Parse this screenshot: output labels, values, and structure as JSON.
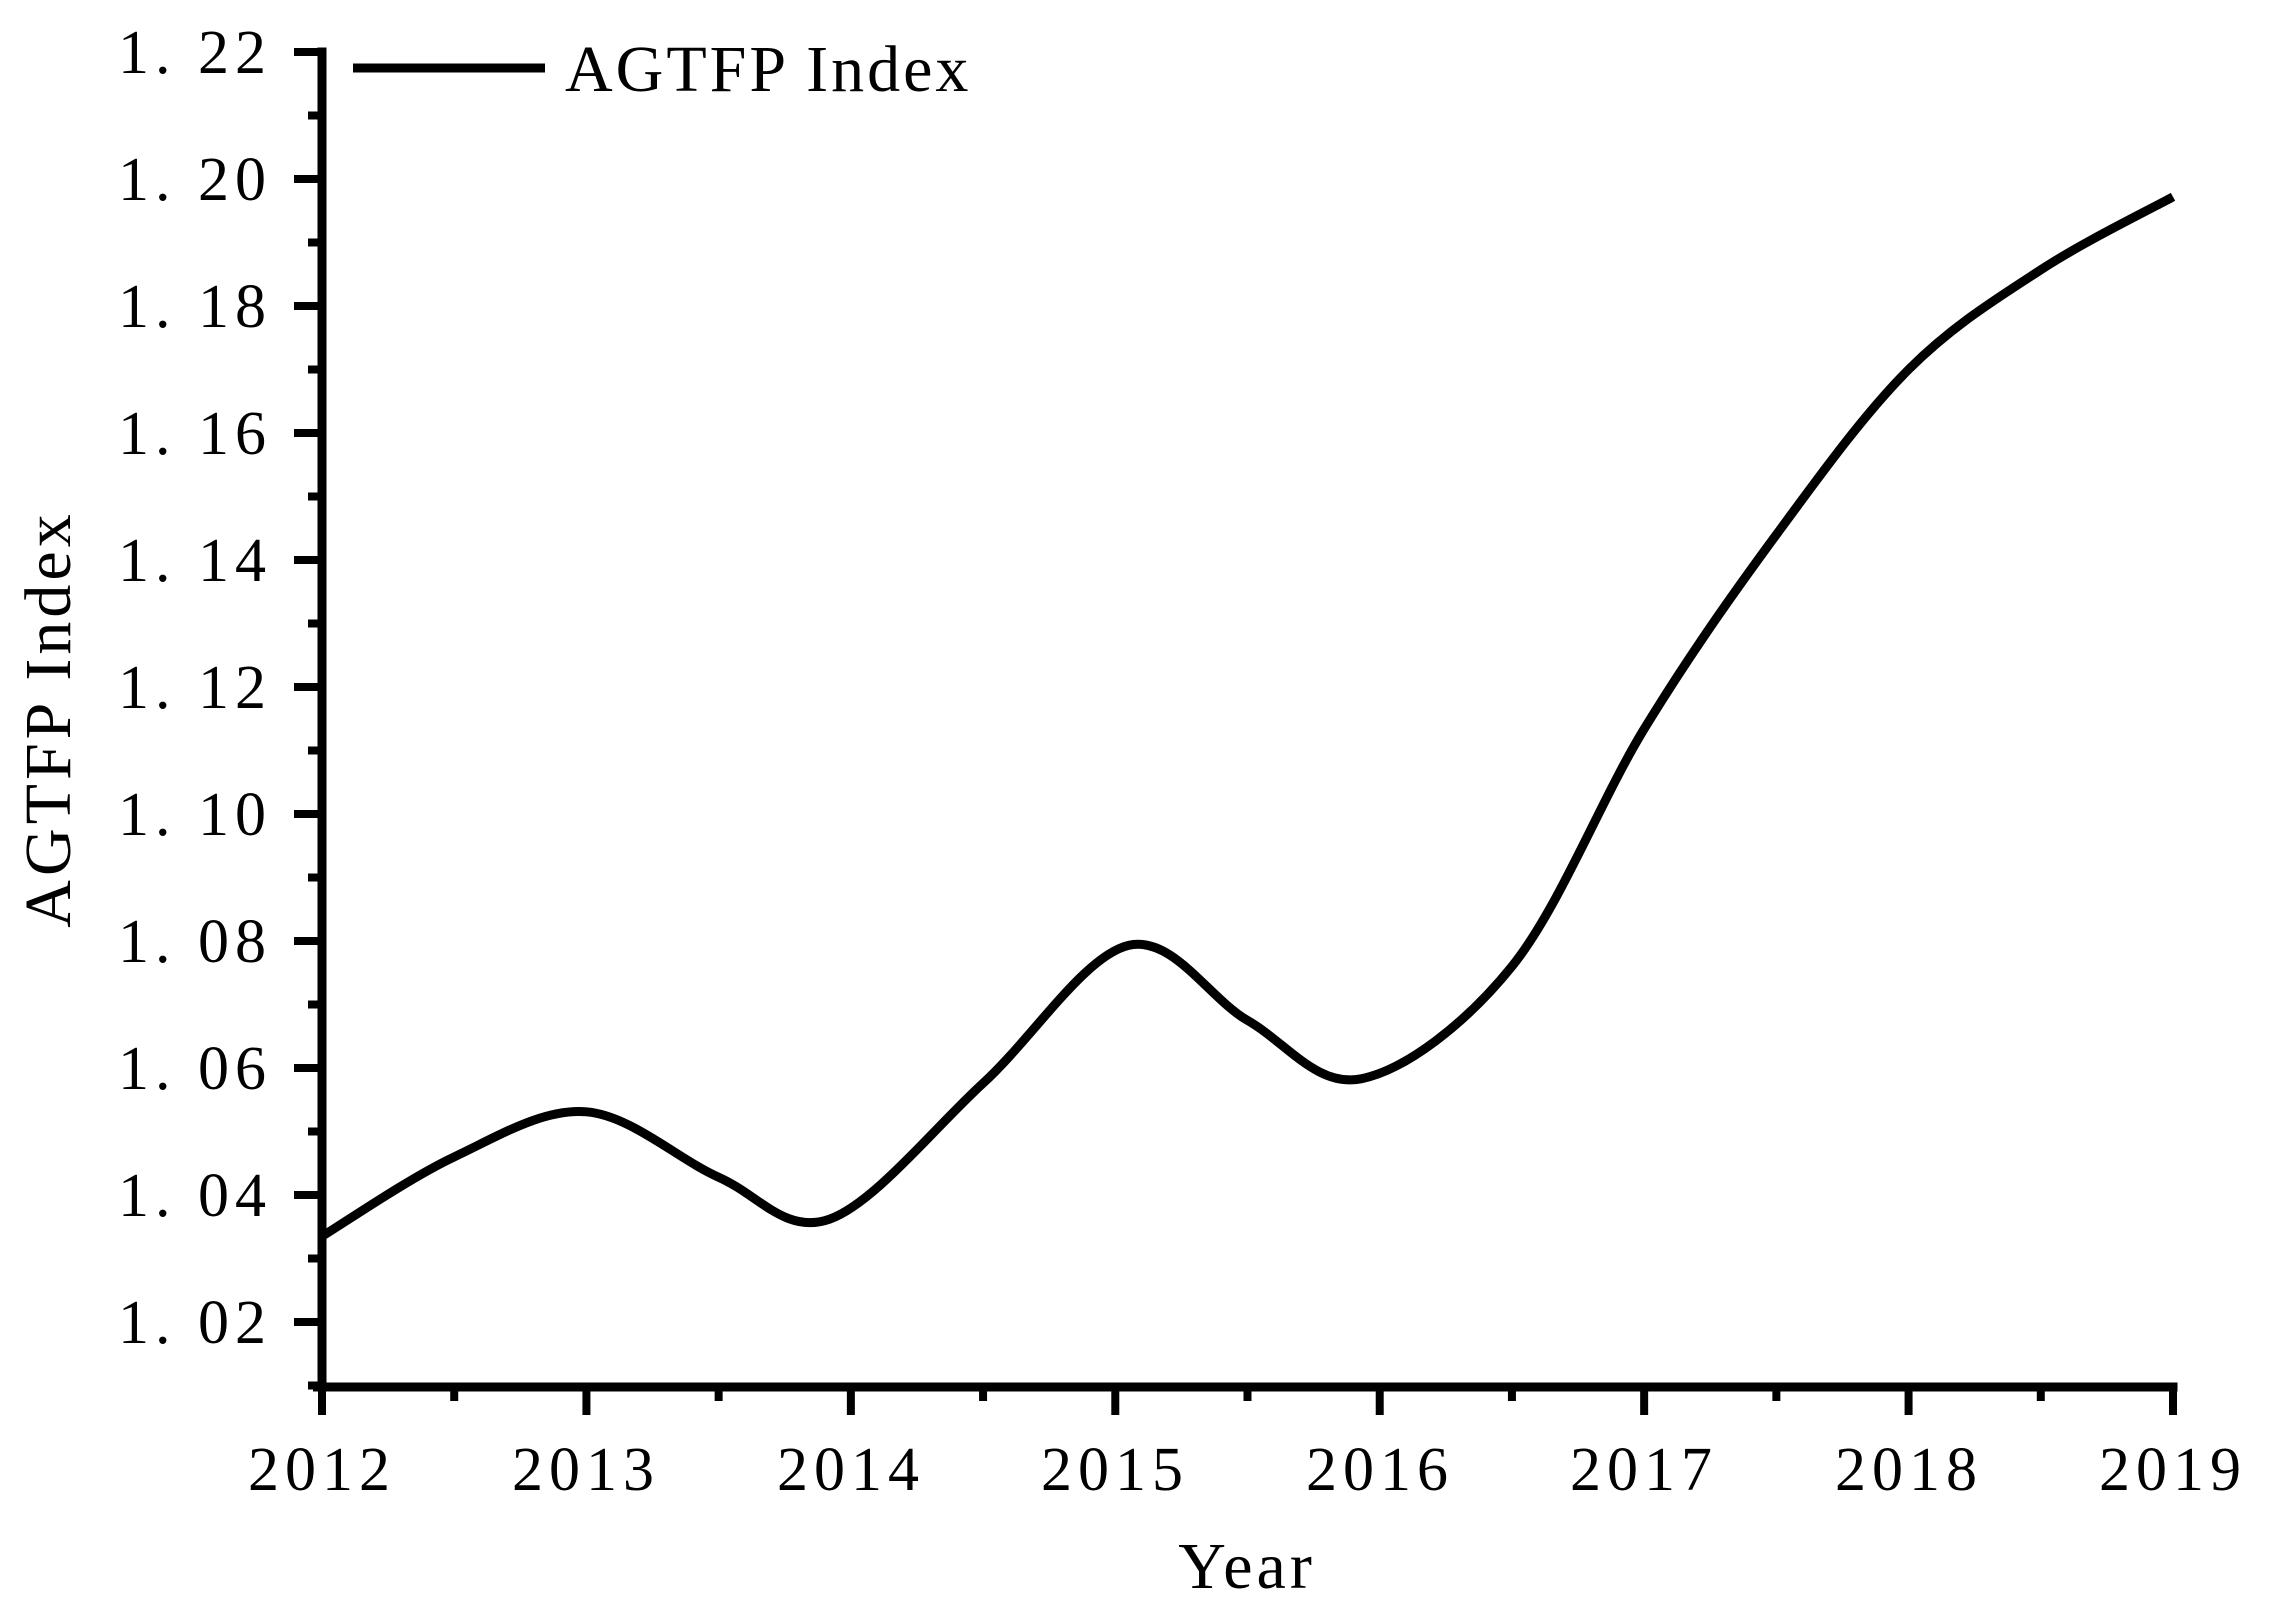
{
  "page": {
    "background": "#ffffff"
  },
  "legend": {
    "label": "AGTFP Index"
  },
  "axes": {
    "x_title": "Year",
    "y_title": "AGTFP Index"
  },
  "chart_data": {
    "type": "line",
    "title": "",
    "xlabel": "Year",
    "ylabel": "AGTFP Index",
    "legend": [
      "AGTFP Index"
    ],
    "legend_position": "top-left-inside",
    "grid": false,
    "line_color": "#000000",
    "background_color": "#ffffff",
    "categories": [
      2012,
      2013,
      2014,
      2015,
      2016,
      2017,
      2018,
      2019
    ],
    "series": [
      {
        "name": "AGTFP Index",
        "values": [
          1.033,
          1.053,
          1.037,
          1.079,
          1.058,
          1.114,
          1.17,
          1.197
        ]
      }
    ],
    "xlim": [
      2012,
      2019
    ],
    "ylim": [
      1.01,
      1.22
    ],
    "x_tick_labels": [
      "2012",
      "2013",
      "2014",
      "2015",
      "2016",
      "2017",
      "2018",
      "2019"
    ],
    "x_tick_values": [
      2012,
      2013,
      2014,
      2015,
      2016,
      2017,
      2018,
      2019
    ],
    "x_minor_tick_values": [
      2012.5,
      2013.5,
      2014.5,
      2015.5,
      2016.5,
      2017.5,
      2018.5
    ],
    "y_tick_labels": [
      "1. 22",
      "1. 20",
      "1. 18",
      "1. 16",
      "1. 14",
      "1. 12",
      "1. 10",
      "1. 08",
      "1. 06",
      "1. 04",
      "1. 02"
    ],
    "y_tick_values": [
      1.22,
      1.2,
      1.18,
      1.16,
      1.14,
      1.12,
      1.1,
      1.08,
      1.06,
      1.04,
      1.02
    ],
    "y_minor_tick_values": [
      1.21,
      1.19,
      1.17,
      1.15,
      1.13,
      1.11,
      1.09,
      1.07,
      1.05,
      1.03,
      1.01
    ],
    "smooth_samples": {
      "x": [
        2012,
        2012.5,
        2013,
        2013.5,
        2013.92,
        2014.5,
        2015.05,
        2015.5,
        2015.93,
        2016.5,
        2017,
        2017.5,
        2018,
        2018.5,
        2019
      ],
      "y": [
        1.0335,
        1.046,
        1.0531,
        1.0428,
        1.0362,
        1.0576,
        1.0793,
        1.0675,
        1.0583,
        1.076,
        1.1134,
        1.144,
        1.17,
        1.1857,
        1.1972
      ]
    }
  }
}
